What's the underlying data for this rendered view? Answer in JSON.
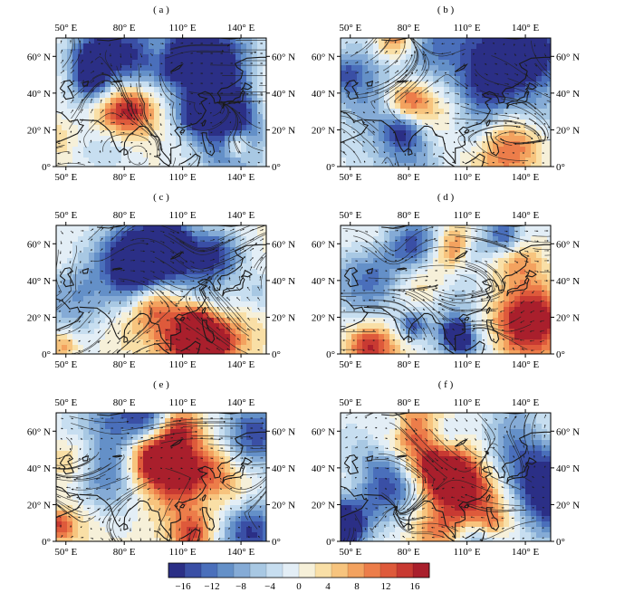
{
  "panels": [
    {
      "id": "a",
      "label": "( a )"
    },
    {
      "id": "b",
      "label": "( b )"
    },
    {
      "id": "c",
      "label": "( c )"
    },
    {
      "id": "d",
      "label": "( d )"
    },
    {
      "id": "e",
      "label": "( e )"
    },
    {
      "id": "f",
      "label": "( f )"
    }
  ],
  "axes": {
    "lon_ticks": [
      "50° E",
      "80° E",
      "110° E",
      "140° E"
    ],
    "lat_ticks": [
      "60° N",
      "40° N",
      "20° N",
      "0°"
    ],
    "lat_ticks_right": [
      "60° N",
      "40° N",
      "20° N",
      "0°"
    ]
  },
  "colorbar": {
    "tick_labels": [
      "−16",
      "−12",
      "−8",
      "−4",
      "0",
      "4",
      "8",
      "12",
      "16"
    ],
    "min": -18,
    "max": 18,
    "colors": [
      "#2b2f86",
      "#3a4fa5",
      "#4a6fbb",
      "#6490c8",
      "#85abd6",
      "#a8c8e3",
      "#c7def0",
      "#e3eef6",
      "#f6f0d9",
      "#f9dfa6",
      "#f7c47e",
      "#f3a25f",
      "#ec7d4a",
      "#de5a3b",
      "#c83a32",
      "#a91f2c"
    ]
  },
  "map_extent": {
    "lon": [
      45,
      153
    ],
    "lat": [
      0,
      70
    ]
  }
}
